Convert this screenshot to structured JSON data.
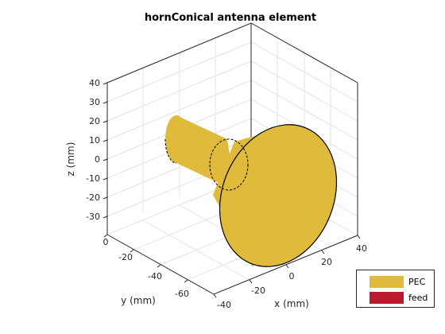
{
  "title": "hornConical antenna element",
  "axes": {
    "z_label": "z (mm)",
    "y_label": "y (mm)",
    "x_label": "x (mm)",
    "z_ticks": [
      "40",
      "30",
      "20",
      "10",
      "0",
      "-10",
      "-20",
      "-30"
    ],
    "y_ticks": [
      "0",
      "-20",
      "-40",
      "-60"
    ],
    "x_ticks": [
      "-40",
      "-20",
      "0",
      "20",
      "40"
    ]
  },
  "legend": {
    "items": [
      {
        "label": "PEC",
        "color": "#E0BA3B"
      },
      {
        "label": "feed",
        "color": "#BA1A2E"
      }
    ]
  },
  "colors": {
    "metal": "#E0BA3B",
    "grid": "#e3e3e3",
    "box": "#262626"
  }
}
